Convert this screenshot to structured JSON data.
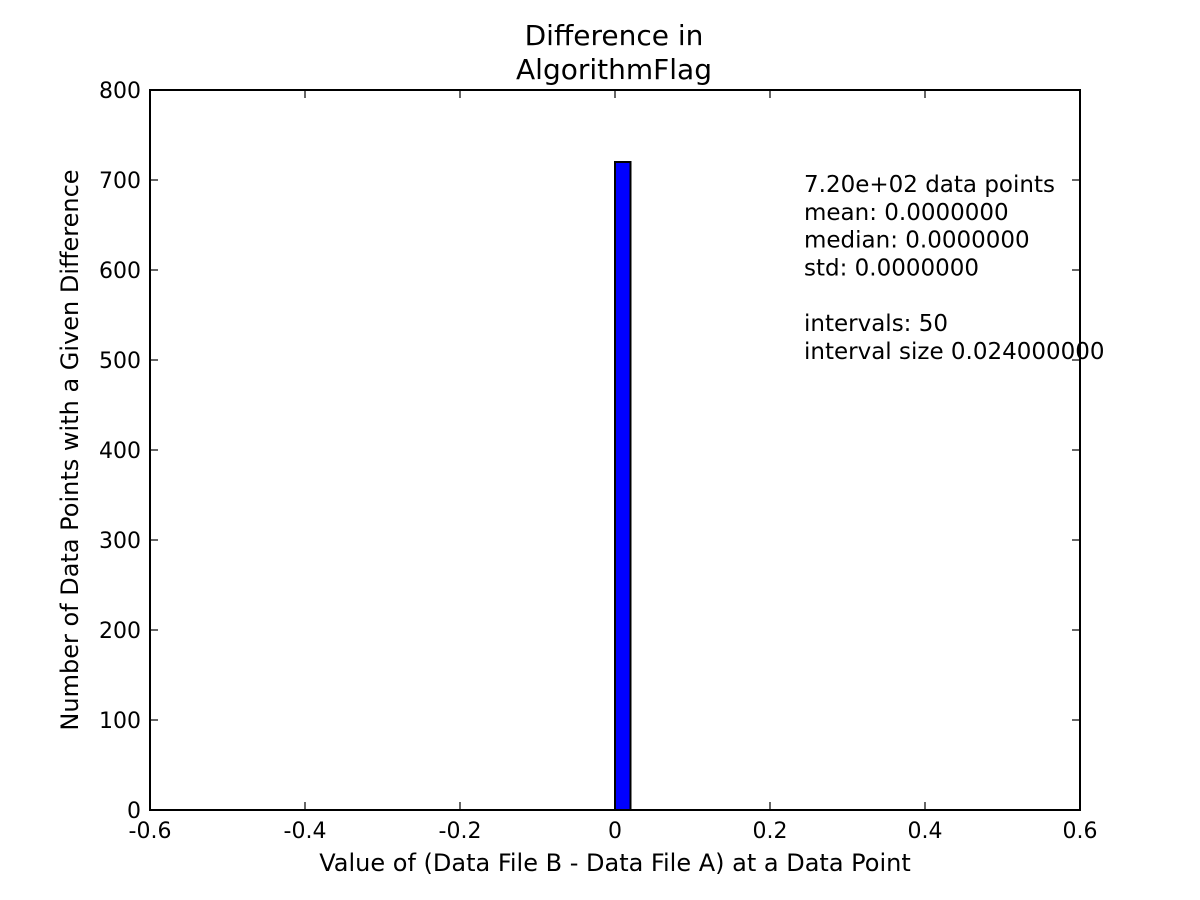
{
  "chart_data": {
    "type": "bar",
    "title_lines": [
      "Difference in",
      "AlgorithmFlag"
    ],
    "xlabel": "Value of (Data File B - Data File A) at a Data Point",
    "ylabel": "Number of Data Points with a Given Difference",
    "xlim": [
      -0.6,
      0.6
    ],
    "ylim": [
      0,
      800
    ],
    "x_ticks": [
      -0.6,
      -0.4,
      -0.2,
      0,
      0.2,
      0.4,
      0.6
    ],
    "x_tick_labels": [
      "-0.6",
      "-0.4",
      "-0.2",
      "0",
      "0.2",
      "0.4",
      "0.6"
    ],
    "y_ticks": [
      0,
      100,
      200,
      300,
      400,
      500,
      600,
      700,
      800
    ],
    "y_tick_labels": [
      "0",
      "100",
      "200",
      "300",
      "400",
      "500",
      "600",
      "700",
      "800"
    ],
    "grid": false,
    "bars": [
      {
        "x_start": 0.0,
        "x_end": 0.02,
        "value": 720
      }
    ],
    "bar_color": "#0000ff",
    "annotation_lines": [
      "7.20e+02 data points",
      "mean: 0.0000000",
      "median: 0.0000000",
      "std: 0.0000000",
      "",
      "intervals: 50",
      "interval size 0.024000000"
    ]
  }
}
